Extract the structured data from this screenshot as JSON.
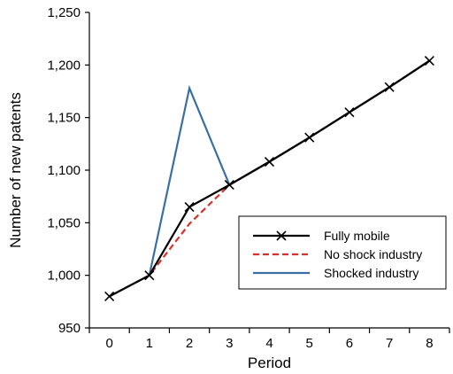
{
  "chart_data": {
    "type": "line",
    "xlabel": "Period",
    "ylabel": "Number of new patents",
    "xlim": [
      -0.5,
      8.5
    ],
    "ylim": [
      950,
      1250
    ],
    "x_ticks": [
      0,
      1,
      2,
      3,
      4,
      5,
      6,
      7,
      8
    ],
    "y_ticks": [
      950,
      1000,
      1050,
      1100,
      1150,
      1200,
      1250
    ],
    "y_tick_labels": [
      "950",
      "1,000",
      "1,050",
      "1,100",
      "1,150",
      "1,200",
      "1,250"
    ],
    "grid": false,
    "legend_position": "lower-right",
    "x": [
      0,
      1,
      2,
      3,
      4,
      5,
      6,
      7,
      8
    ],
    "series": [
      {
        "name": "Fully mobile",
        "color": "#000000",
        "style": "solid",
        "marker": "x",
        "values": [
          980,
          1000,
          1065,
          1086,
          1108,
          1131,
          1155,
          1179,
          1204
        ]
      },
      {
        "name": "No shock industry",
        "color": "#d9302b",
        "style": "dashed",
        "marker": "none",
        "values": [
          980,
          1000,
          1049,
          1086,
          1108,
          1131,
          1155,
          1179,
          1204
        ]
      },
      {
        "name": "Shocked industry",
        "color": "#3a6fa6",
        "style": "solid",
        "marker": "none",
        "values": [
          980,
          1000,
          1178,
          1086,
          1108,
          1131,
          1155,
          1179,
          1204
        ]
      }
    ]
  }
}
